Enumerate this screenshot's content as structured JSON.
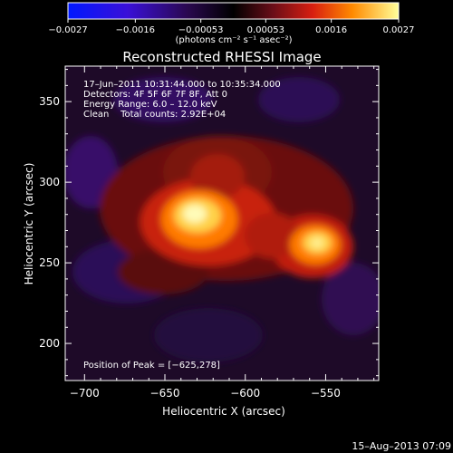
{
  "chart_data": {
    "type": "heatmap",
    "title": "Reconstructed RHESSI Image",
    "xlabel": "Heliocentric X (arcsec)",
    "ylabel": "Heliocentric Y (arcsec)",
    "xlim": [
      -712,
      -517
    ],
    "ylim": [
      177,
      372
    ],
    "x_ticks": [
      -700,
      -650,
      -600,
      -550
    ],
    "x_tick_labels": [
      "−700",
      "−650",
      "−600",
      "−550"
    ],
    "y_ticks": [
      200,
      250,
      300,
      350
    ],
    "y_tick_labels": [
      "200",
      "250",
      "300",
      "350"
    ],
    "colorbar": {
      "range": [
        -0.0027,
        0.0027
      ],
      "ticks": [
        -0.0027,
        -0.0016,
        -0.00053,
        0.00053,
        0.0016,
        0.0027
      ],
      "tick_labels": [
        "−0.0027",
        "−0.0016",
        "−0.00053",
        "0.00053",
        "0.0016",
        "0.0027"
      ],
      "unit_label": "(photons cm⁻² s⁻¹ asec⁻²)"
    },
    "annotations": {
      "time": "17–Jun–2011 10:31:44.000 to 10:35:34.000",
      "detectors": "Detectors: 4F 5F 6F 7F 8F, Att 0",
      "energy": "Energy Range: 6.0 – 12.0 keV",
      "clean": "Clean    Total counts: 2.92E+04",
      "peak": "Position of Peak = [−625,278]"
    },
    "sources": [
      {
        "x": -625,
        "y": 278,
        "value": 0.0027
      },
      {
        "x": -562,
        "y": 262,
        "value": 0.0022
      }
    ],
    "peak": {
      "x": -625,
      "y": 278
    }
  },
  "footer": {
    "timestamp": "15–Aug–2013 07:09"
  }
}
